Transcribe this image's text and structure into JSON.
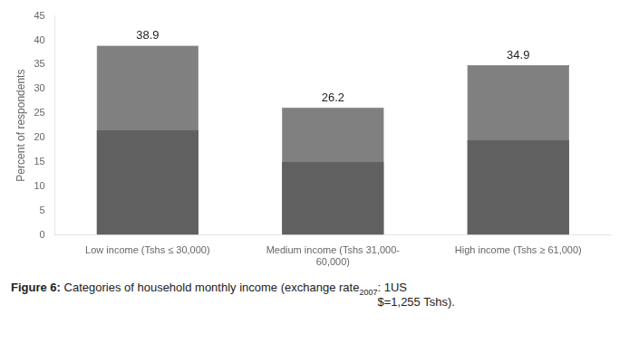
{
  "chart_data": {
    "type": "bar",
    "categories": [
      "Low income (Tshs ≤ 30,000)",
      "Medium income (Tshs 31,000-\n60,000)",
      "High income (Tshs ≥ 61,000)"
    ],
    "values": [
      38.9,
      26.2,
      34.9
    ],
    "color": "#808080",
    "bar_bottom": [
      21.5,
      15.0,
      19.5
    ],
    "y_label": "Percent of respondents",
    "ylim": [
      0,
      45
    ],
    "yticks": [
      0,
      5,
      10,
      15,
      20,
      25,
      30,
      35,
      40,
      45
    ],
    "grid": false,
    "data_labels": true,
    "annotations": [
      "Figure 6: ",
      "Categories of household monthly income (exchange rate",
      "2007",
      ": 1US\n$=1,255 Tshs)."
    ]
  }
}
